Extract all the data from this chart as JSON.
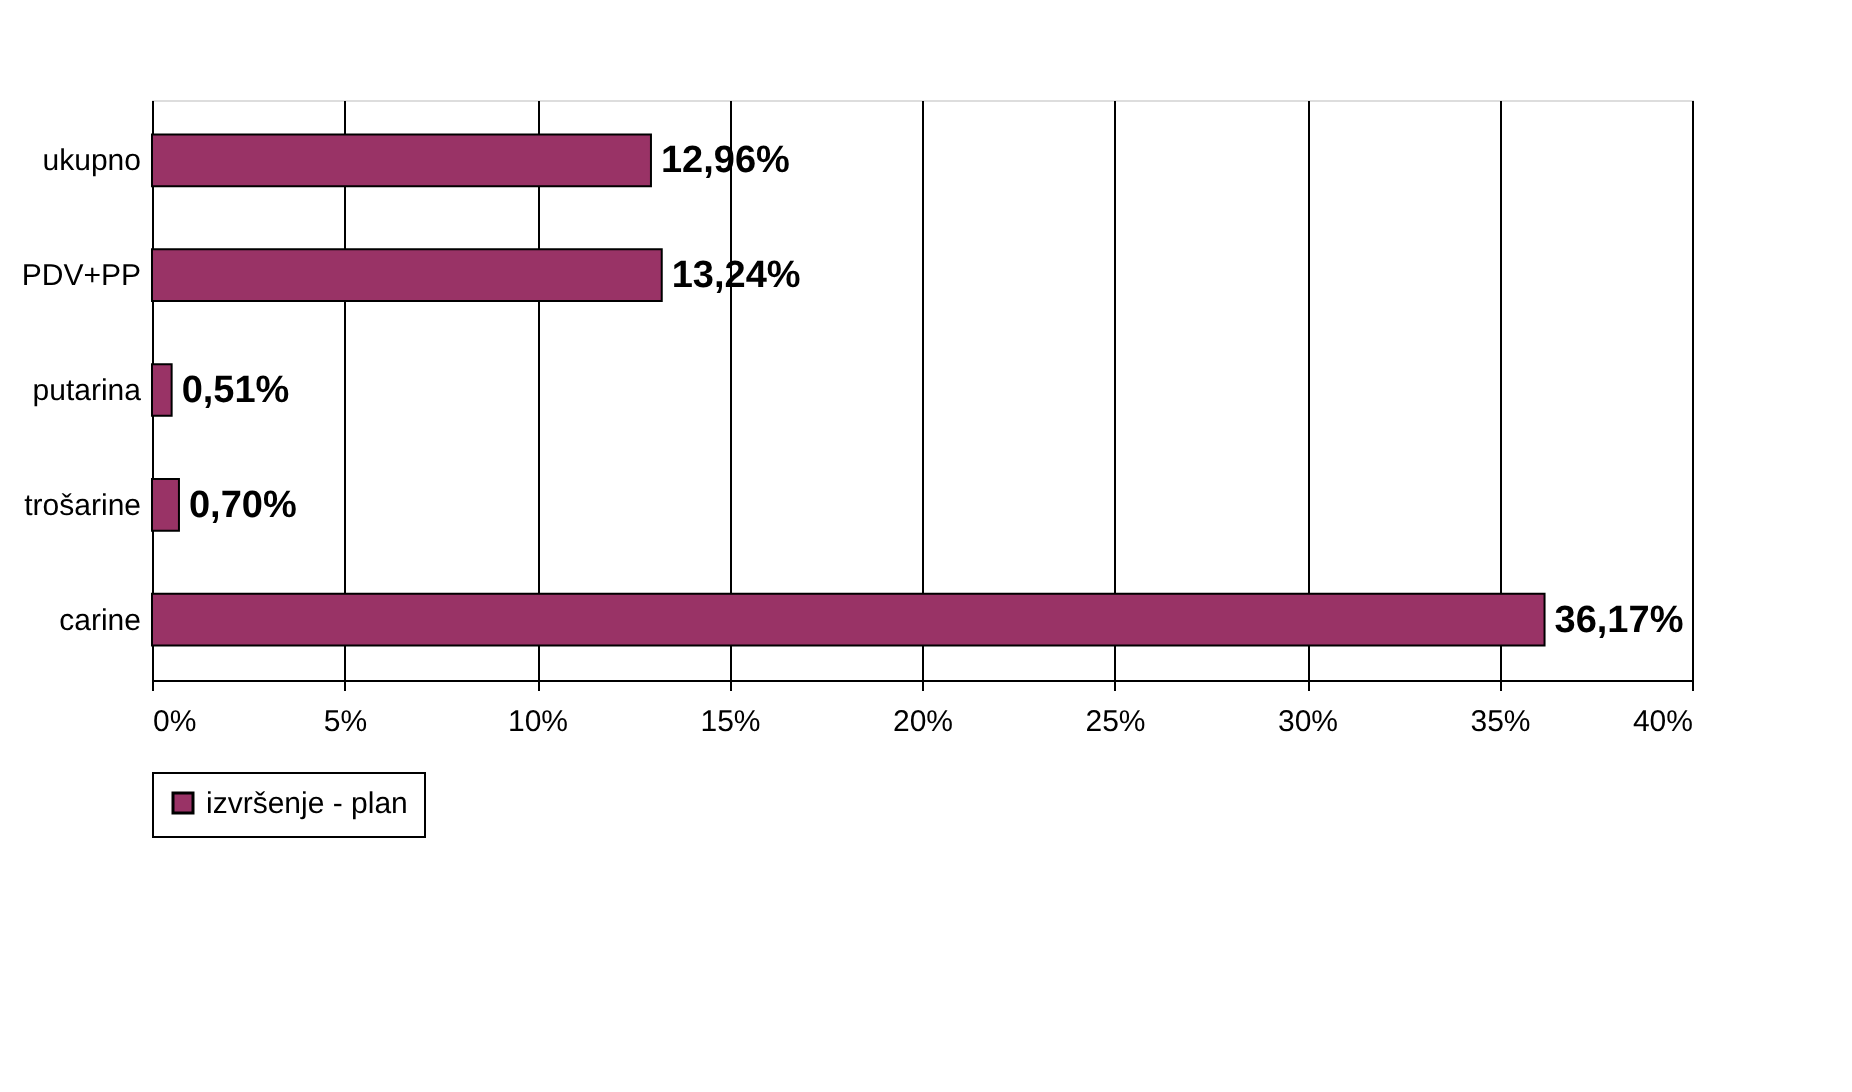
{
  "chart_data": {
    "type": "bar",
    "orientation": "horizontal",
    "categories": [
      "ukupno",
      "PDV+PP",
      "putarina",
      "trošarine",
      "carine"
    ],
    "series": [
      {
        "name": "izvršenje - plan",
        "color": "#993366",
        "values": [
          12.96,
          13.24,
          0.51,
          0.7,
          36.17
        ]
      }
    ],
    "value_labels": [
      "12,96%",
      "13,24%",
      "0,51%",
      "0,70%",
      "36,17%"
    ],
    "xlim": [
      0,
      40
    ],
    "xticks": [
      {
        "value": 0,
        "label": "0%"
      },
      {
        "value": 5,
        "label": "5%"
      },
      {
        "value": 10,
        "label": "10%"
      },
      {
        "value": 15,
        "label": "15%"
      },
      {
        "value": 20,
        "label": "20%"
      },
      {
        "value": 25,
        "label": "25%"
      },
      {
        "value": 30,
        "label": "30%"
      },
      {
        "value": 35,
        "label": "35%"
      },
      {
        "value": 40,
        "label": "40%"
      }
    ],
    "grid": "x",
    "legend": "bottom"
  }
}
